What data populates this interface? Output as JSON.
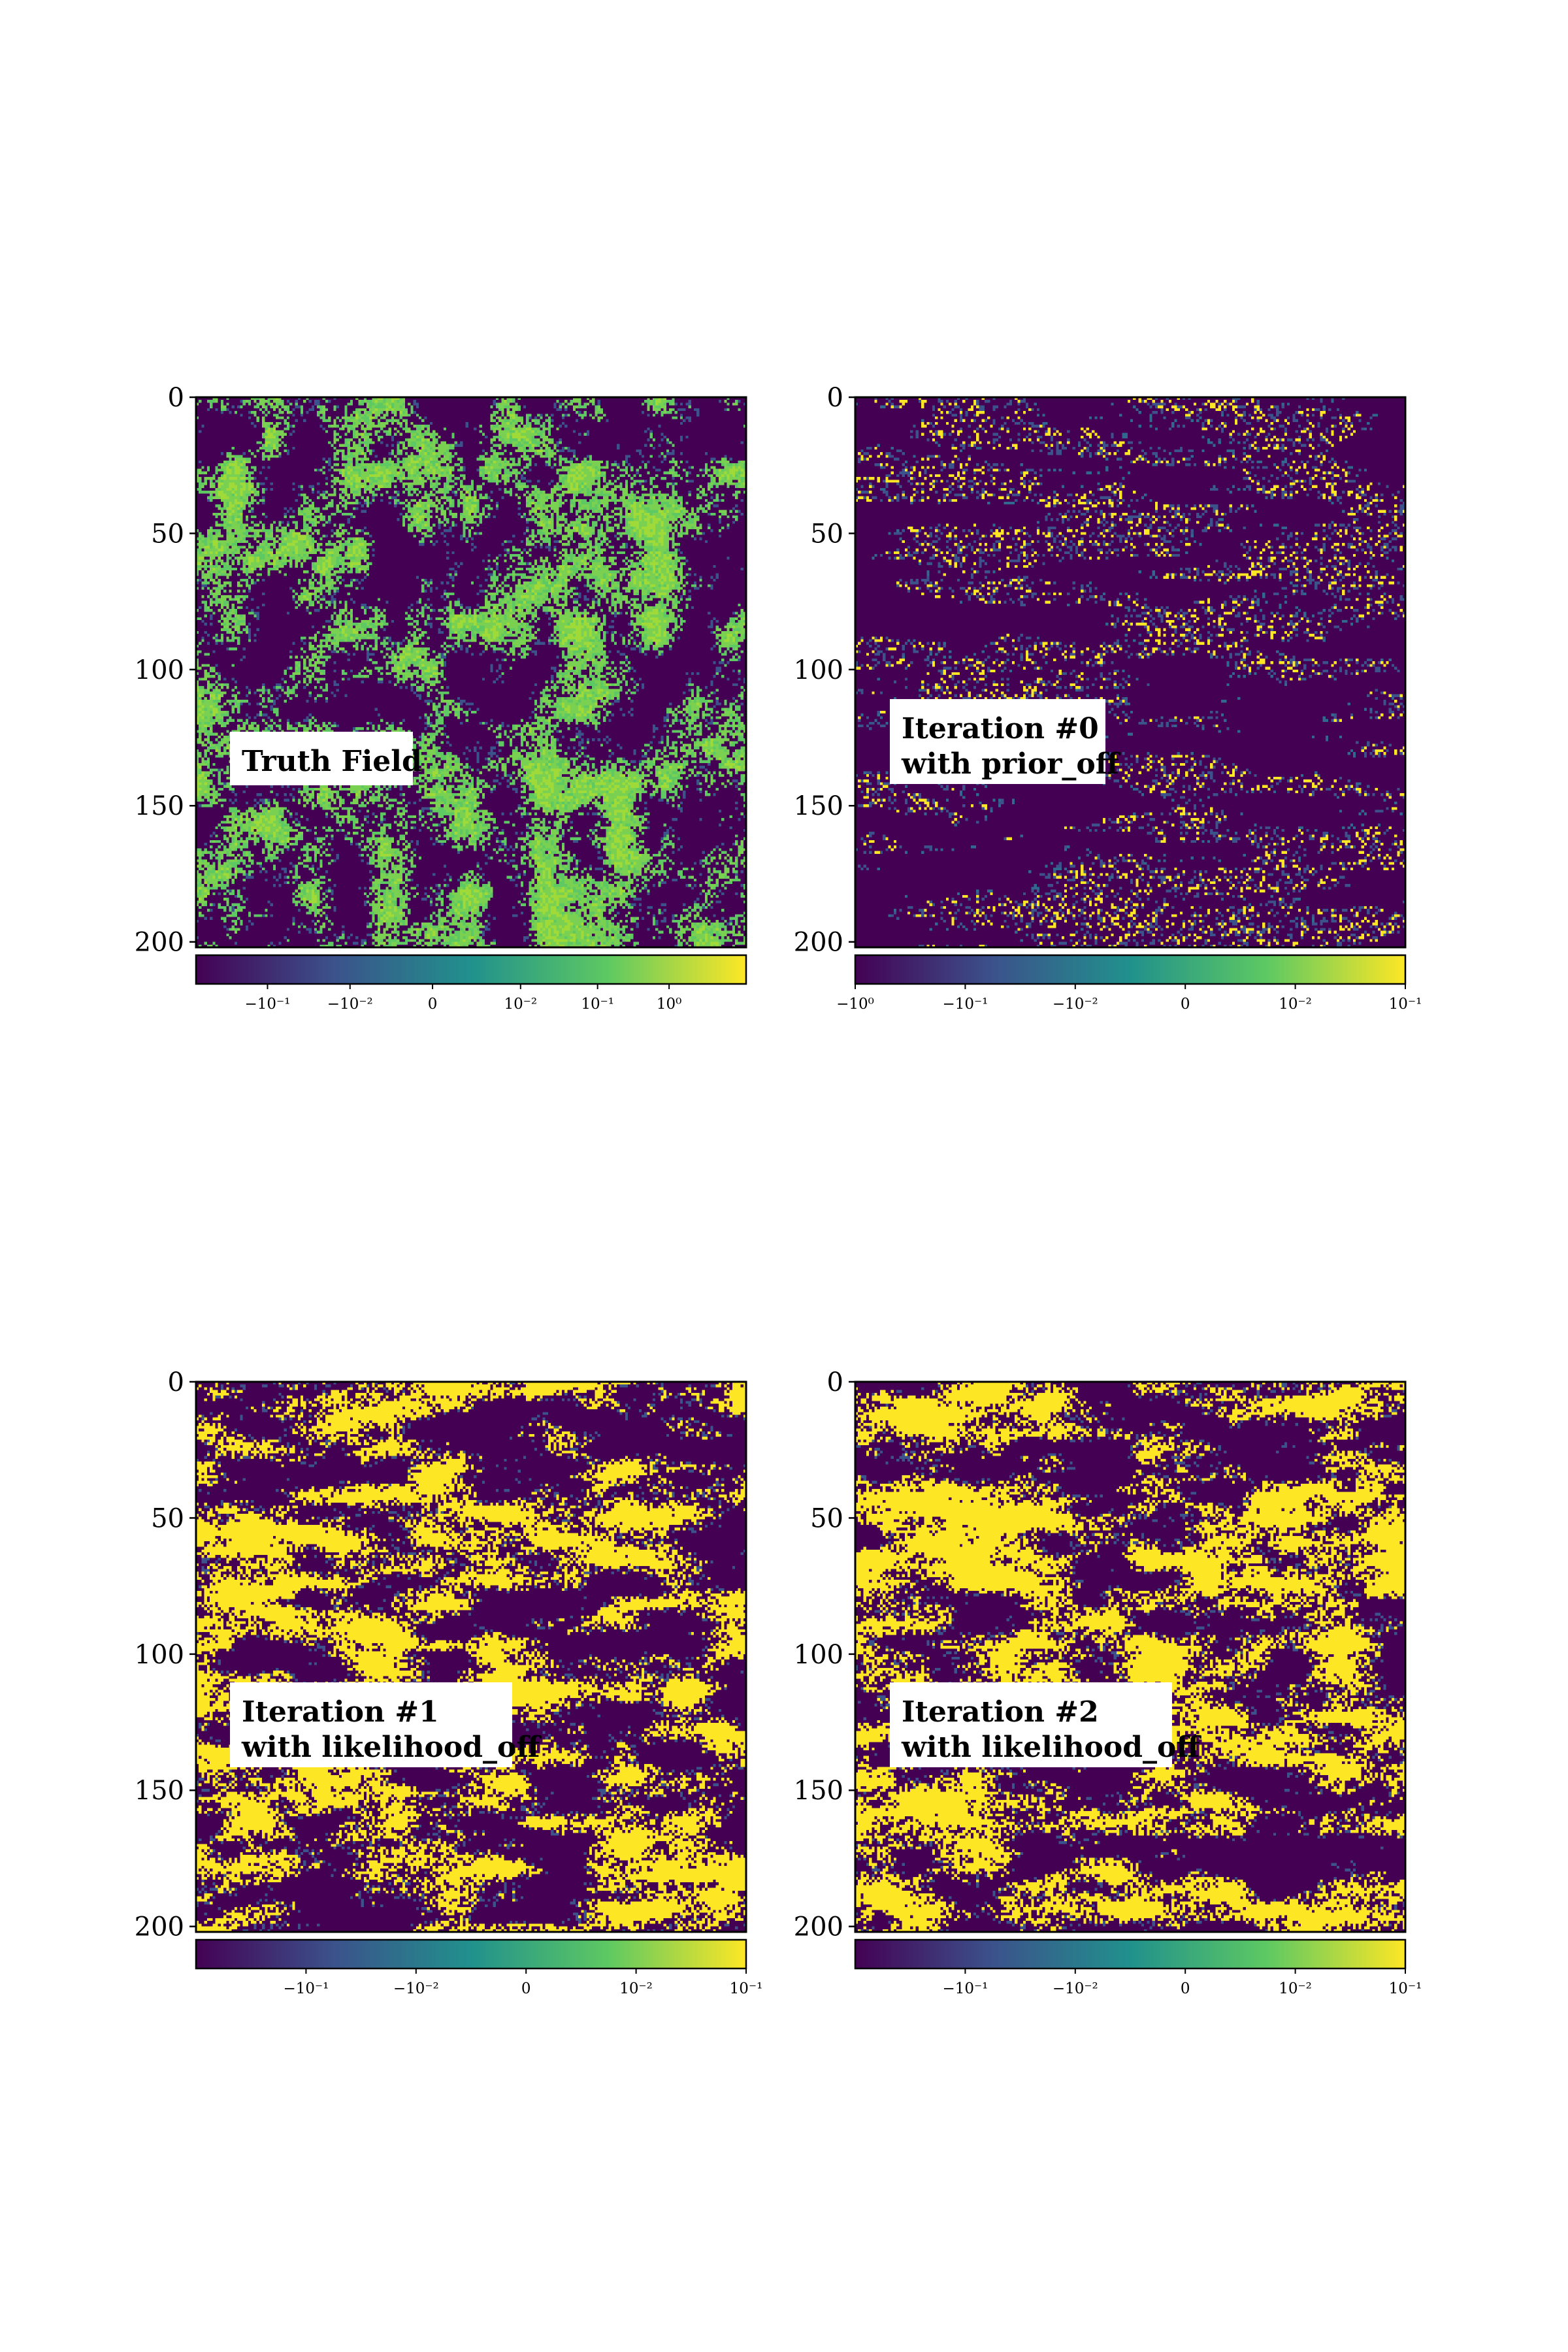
{
  "colormap": [
    "#440154",
    "#3b528b",
    "#21918c",
    "#5ec962",
    "#fde725"
  ],
  "chart_data": [
    {
      "type": "heatmap",
      "annotation": [
        "Truth Field"
      ],
      "yticks": [
        "0",
        "50",
        "100",
        "150",
        "200"
      ],
      "ylim": [
        0,
        200
      ],
      "grid_size": 200,
      "style": "truth",
      "colorbar": {
        "ticks": [
          "−10⁻¹",
          "−10⁻²",
          "0",
          "10⁻²",
          "10⁻¹",
          "10⁰"
        ],
        "positions": [
          0.13,
          0.28,
          0.43,
          0.59,
          0.73,
          0.86
        ]
      }
    },
    {
      "type": "heatmap",
      "annotation": [
        "Iteration #0",
        "with prior_off"
      ],
      "yticks": [
        "0",
        "50",
        "100",
        "150",
        "200"
      ],
      "ylim": [
        0,
        200
      ],
      "grid_size": 200,
      "style": "prior",
      "colorbar": {
        "ticks": [
          "−10⁰",
          "−10⁻¹",
          "−10⁻²",
          "0",
          "10⁻²",
          "10⁻¹"
        ],
        "positions": [
          0.0,
          0.2,
          0.4,
          0.6,
          0.8,
          1.0
        ]
      }
    },
    {
      "type": "heatmap",
      "annotation": [
        "Iteration #1",
        "with likelihood_off"
      ],
      "yticks": [
        "0",
        "50",
        "100",
        "150",
        "200"
      ],
      "ylim": [
        0,
        200
      ],
      "grid_size": 200,
      "style": "like",
      "colorbar": {
        "ticks": [
          "−10⁻¹",
          "−10⁻²",
          "0",
          "10⁻²",
          "10⁻¹"
        ],
        "positions": [
          0.2,
          0.4,
          0.6,
          0.8,
          1.0
        ]
      }
    },
    {
      "type": "heatmap",
      "annotation": [
        "Iteration #2",
        "with likelihood_off"
      ],
      "yticks": [
        "0",
        "50",
        "100",
        "150",
        "200"
      ],
      "ylim": [
        0,
        200
      ],
      "grid_size": 200,
      "style": "like2",
      "colorbar": {
        "ticks": [
          "−10⁻¹",
          "−10⁻²",
          "0",
          "10⁻²",
          "10⁻¹"
        ],
        "positions": [
          0.2,
          0.4,
          0.6,
          0.8,
          1.0
        ]
      }
    }
  ]
}
